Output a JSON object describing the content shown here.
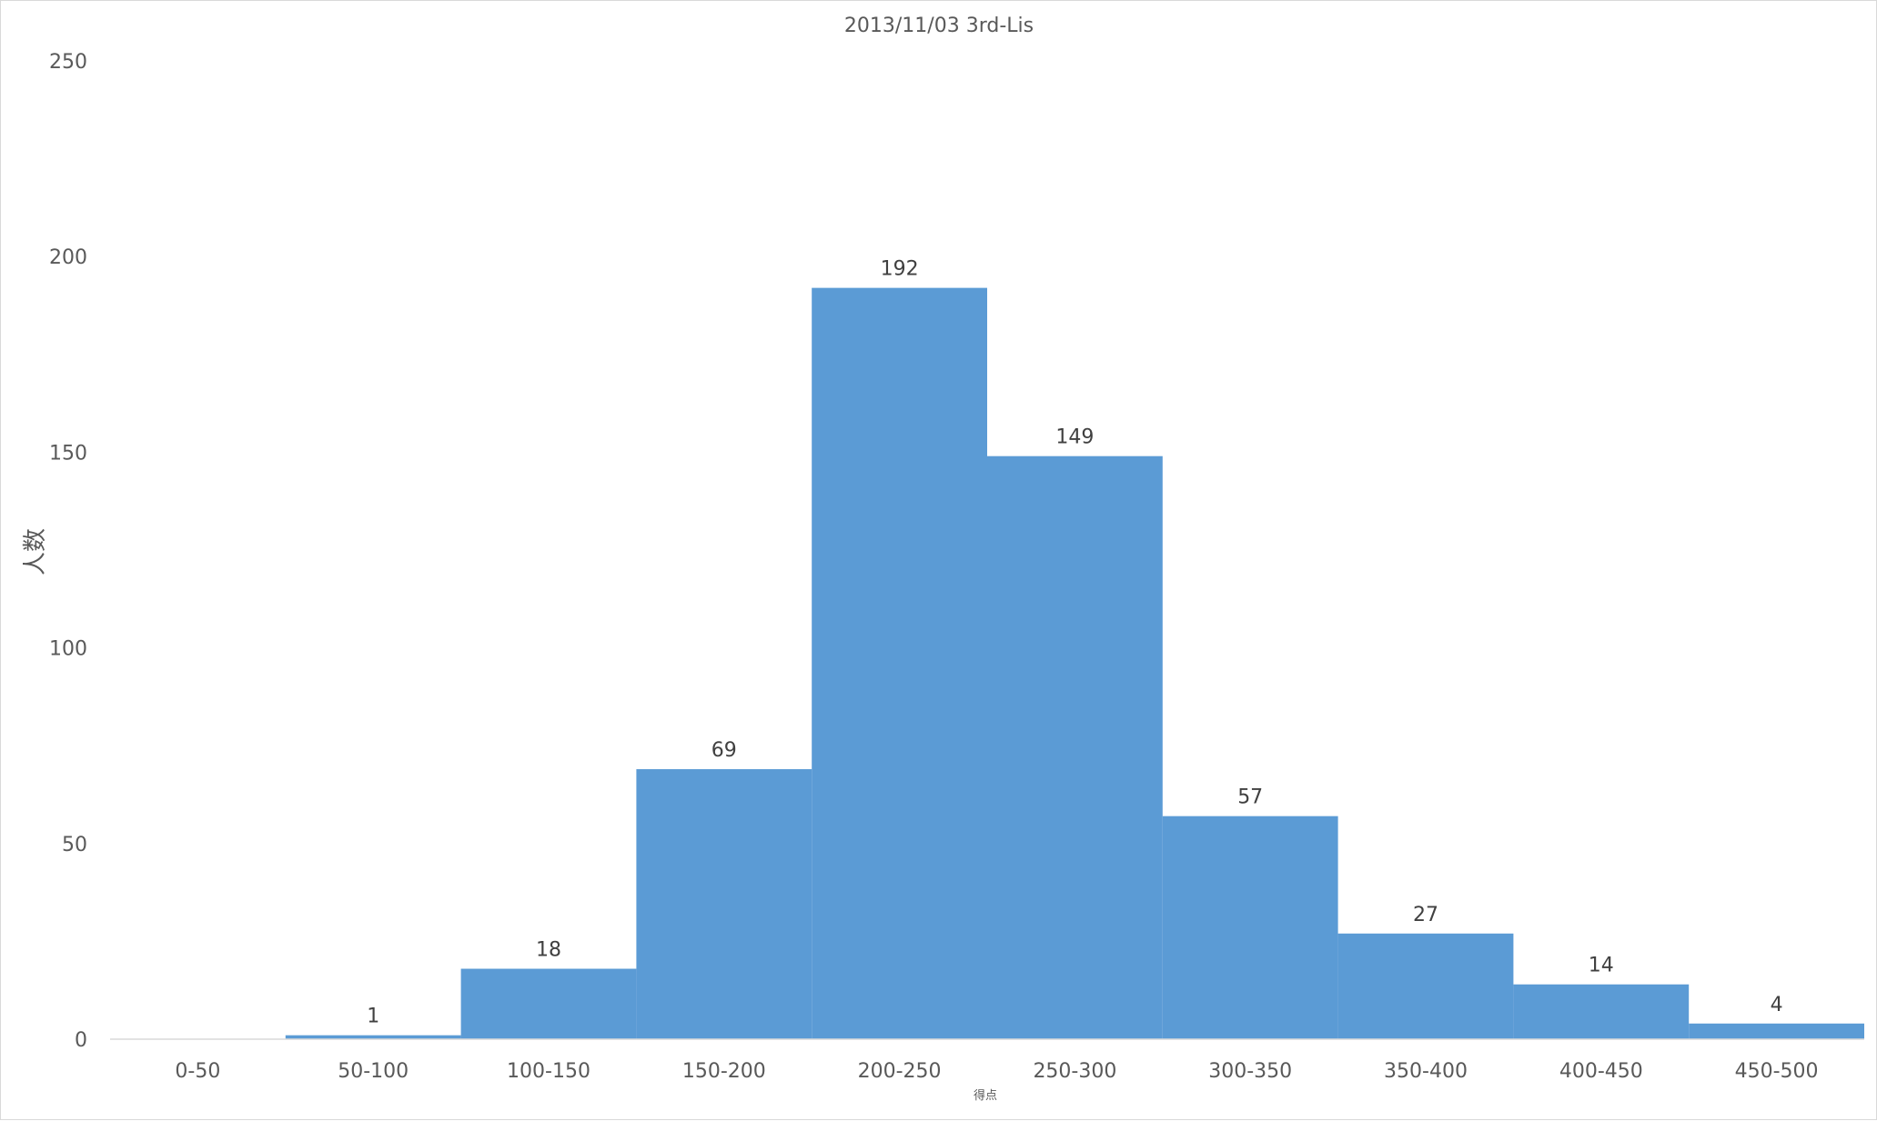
{
  "chart_data": {
    "type": "bar",
    "title": "2013/11/03 3rd-Lis",
    "xlabel": "得点",
    "ylabel": "人数",
    "categories": [
      "0-50",
      "50-100",
      "100-150",
      "150-200",
      "200-250",
      "250-300",
      "300-350",
      "350-400",
      "400-450",
      "450-500"
    ],
    "values": [
      0,
      1,
      18,
      69,
      192,
      149,
      57,
      27,
      14,
      4
    ],
    "data_labels": [
      "",
      "1",
      "18",
      "69",
      "192",
      "149",
      "57",
      "27",
      "14",
      "4"
    ],
    "yticks": [
      0,
      50,
      100,
      150,
      200,
      250
    ],
    "ylim": [
      0,
      250
    ],
    "grid": false,
    "legend": "none",
    "bar_color": "#5b9bd5",
    "gap_width": 0
  }
}
